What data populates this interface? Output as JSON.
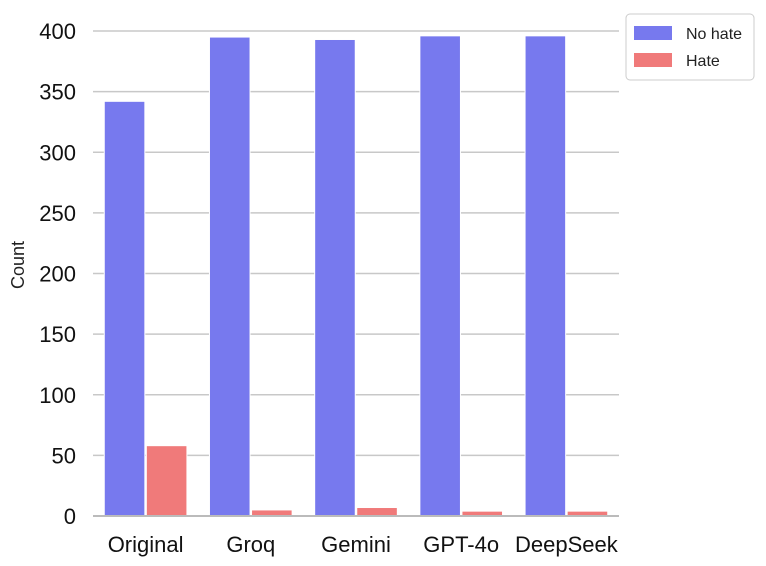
{
  "chart_data": {
    "type": "bar",
    "ylabel": "Count",
    "xlabel": "",
    "ylim": [
      0,
      400
    ],
    "yticks": [
      0,
      50,
      100,
      150,
      200,
      250,
      300,
      350,
      400
    ],
    "grid": "horizontal",
    "legend_position": "top-right outside",
    "categories": [
      "Original",
      "Groq",
      "Gemini",
      "GPT-4o",
      "DeepSeek"
    ],
    "series": [
      {
        "name": "No hate",
        "color": "#7779ee",
        "values": [
          342,
          395,
          393,
          396,
          396
        ]
      },
      {
        "name": "Hate",
        "color": "#f07a7a",
        "values": [
          58,
          5,
          7,
          4,
          4
        ]
      }
    ]
  }
}
